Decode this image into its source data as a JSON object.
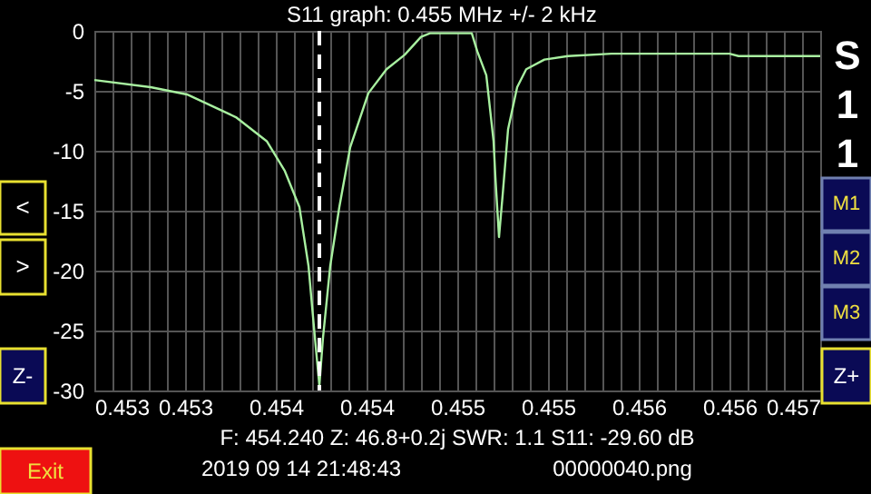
{
  "chart_data": {
    "type": "line",
    "title": "S11 graph: 0.455 MHz +/- 2 kHz",
    "x": [
      0.453,
      0.45331,
      0.45351,
      0.45378,
      0.45395,
      0.45405,
      0.45413,
      0.45418,
      0.45421,
      0.45424,
      0.45426,
      0.4543,
      0.45435,
      0.45441,
      0.45451,
      0.45461,
      0.45471,
      0.4548,
      0.45485,
      0.45508,
      0.45511,
      0.45516,
      0.4552,
      0.45521,
      0.45523,
      0.45525,
      0.45528,
      0.45533,
      0.45538,
      0.45548,
      0.45561,
      0.45585,
      0.4565,
      0.45655,
      0.457
    ],
    "series": [
      {
        "color": "#a8f0a0",
        "values": [
          -4.1,
          -4.7,
          -5.3,
          -7.2,
          -9.2,
          -11.7,
          -14.7,
          -19.6,
          -24.7,
          -29.6,
          -25.6,
          -19.6,
          -14.7,
          -9.7,
          -5.2,
          -3.2,
          -2.0,
          -0.5,
          -0.2,
          -0.2,
          -1.7,
          -3.7,
          -9.2,
          -12.2,
          -17.2,
          -13.7,
          -8.2,
          -4.7,
          -3.2,
          -2.4,
          -2.1,
          -1.9,
          -1.9,
          -2.1,
          -2.1
        ]
      }
    ],
    "xlim": [
      0.453,
      0.457
    ],
    "xticks": [
      {
        "value": 0.453,
        "label": "0.453"
      },
      {
        "value": 0.4531,
        "label": null
      },
      {
        "value": 0.4532,
        "label": null
      },
      {
        "value": 0.4533,
        "label": null
      },
      {
        "value": 0.4534,
        "label": null
      },
      {
        "value": 0.4535,
        "label": "0.453"
      },
      {
        "value": 0.4536,
        "label": null
      },
      {
        "value": 0.4537,
        "label": null
      },
      {
        "value": 0.4538,
        "label": null
      },
      {
        "value": 0.4539,
        "label": null
      },
      {
        "value": 0.454,
        "label": "0.454"
      },
      {
        "value": 0.4541,
        "label": null
      },
      {
        "value": 0.4542,
        "label": null
      },
      {
        "value": 0.4543,
        "label": null
      },
      {
        "value": 0.4544,
        "label": null
      },
      {
        "value": 0.4545,
        "label": "0.454"
      },
      {
        "value": 0.4546,
        "label": null
      },
      {
        "value": 0.4547,
        "label": null
      },
      {
        "value": 0.4548,
        "label": null
      },
      {
        "value": 0.4549,
        "label": null
      },
      {
        "value": 0.455,
        "label": "0.455"
      },
      {
        "value": 0.4551,
        "label": null
      },
      {
        "value": 0.4552,
        "label": null
      },
      {
        "value": 0.4553,
        "label": null
      },
      {
        "value": 0.4554,
        "label": null
      },
      {
        "value": 0.4555,
        "label": "0.455"
      },
      {
        "value": 0.4556,
        "label": null
      },
      {
        "value": 0.4557,
        "label": null
      },
      {
        "value": 0.4558,
        "label": null
      },
      {
        "value": 0.4559,
        "label": null
      },
      {
        "value": 0.456,
        "label": "0.456"
      },
      {
        "value": 0.4561,
        "label": null
      },
      {
        "value": 0.4562,
        "label": null
      },
      {
        "value": 0.4563,
        "label": null
      },
      {
        "value": 0.4564,
        "label": null
      },
      {
        "value": 0.4565,
        "label": "0.456"
      },
      {
        "value": 0.4566,
        "label": null
      },
      {
        "value": 0.4567,
        "label": null
      },
      {
        "value": 0.4568,
        "label": null
      },
      {
        "value": 0.4569,
        "label": null
      },
      {
        "value": 0.457,
        "label": "0.457"
      }
    ],
    "ylim": [
      -30,
      0
    ],
    "yticks": [
      -30,
      -25,
      -20,
      -15,
      -10,
      -5,
      0
    ],
    "grid": true,
    "marker": "none",
    "line_style": "solid",
    "ref_lines": [
      {
        "axis": "x",
        "value": 0.45424,
        "color": "#ffffff",
        "line_style": "dashed"
      }
    ],
    "annotations": [
      "S11",
      "<",
      ">",
      "Z-",
      "M1",
      "M2",
      "M3",
      "Z+",
      "Exit",
      "F: 454.240   Z: 46.8+0.2j   SWR: 1.1   S11: -29.60 dB",
      "2019 09 14 21:48:43",
      "00000040.png"
    ]
  }
}
